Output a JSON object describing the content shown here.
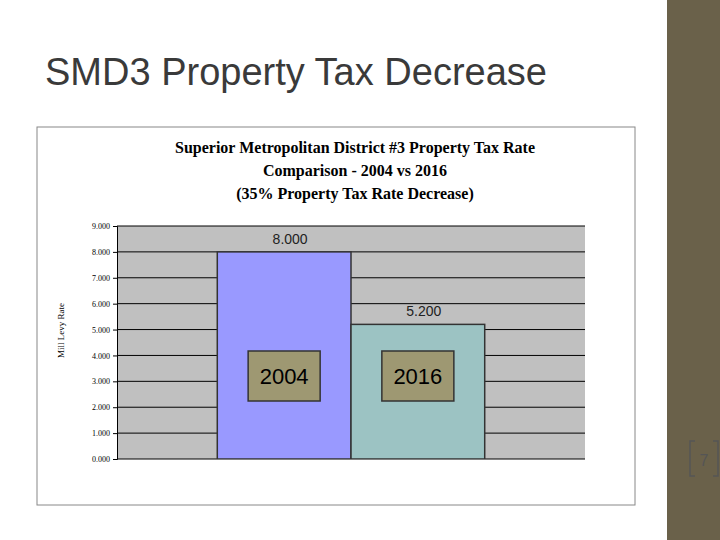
{
  "slide": {
    "title": "SMD3 Property Tax Decrease",
    "page_number": 7
  },
  "chart_data": {
    "type": "bar",
    "title": [
      "Superior Metropolitan District #3 Property Tax Rate",
      "Comparison -  2004 vs 2016"
    ],
    "subtitle": "(35% Property Tax Rate Decrease)",
    "y_label": "Mill Levy Rate",
    "categories": [
      "2004",
      "2016"
    ],
    "values": [
      8.0,
      5.2
    ],
    "value_labels": [
      "8.000",
      "5.200"
    ],
    "colors": [
      "#9999ff",
      "#9cc3c3"
    ],
    "ylim": [
      0,
      9
    ],
    "yticks": [
      {
        "value": 0,
        "label": "0.000"
      },
      {
        "value": 1,
        "label": "1.000"
      },
      {
        "value": 2,
        "label": "2.000"
      },
      {
        "value": 3,
        "label": "3.000"
      },
      {
        "value": 4,
        "label": "4.000"
      },
      {
        "value": 5,
        "label": "5.000"
      },
      {
        "value": 6,
        "label": "6.000"
      },
      {
        "value": 7,
        "label": "7.000"
      },
      {
        "value": 8,
        "label": "8.000"
      },
      {
        "value": 9,
        "label": "9.000"
      }
    ],
    "grid": true,
    "data_labels": true
  }
}
